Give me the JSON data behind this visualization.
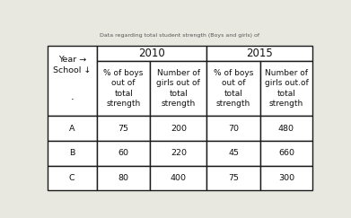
{
  "header_year_labels": [
    "2010",
    "2015"
  ],
  "header_row1_text": "Year →\nSchool ↓",
  "header_dot": "·",
  "subheaders": [
    "% of boys\nout of\ntotal\nstrength",
    "Number of\ngirls out of\ntotal\nstrength",
    "% of boys\nout of\ntotal\nstrength",
    "Number of\ngirls out.of\ntotal\nstrength"
  ],
  "data_rows": [
    [
      "A",
      "75",
      "200",
      "70",
      "480"
    ],
    [
      "B",
      "60",
      "220",
      "45",
      "660"
    ],
    [
      "Ċ",
      "80",
      "400",
      "75",
      "300"
    ]
  ],
  "bg_color": "#e8e8e0",
  "cell_color": "#ffffff",
  "border_color": "#1a1a1a",
  "text_color": "#111111",
  "font_size": 6.8,
  "header_font_size": 8.5,
  "lw": 1.0
}
